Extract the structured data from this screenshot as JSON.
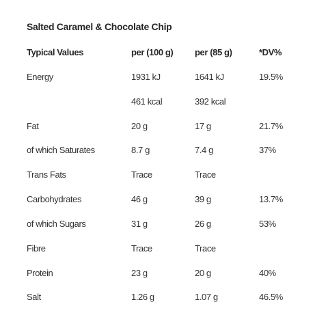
{
  "title": "Salted Caramel & Chocolate Chip",
  "headers": [
    "Typical Values",
    "per (100 g)",
    "per (85 g)",
    "*DV%"
  ],
  "rows": [
    [
      "Energy",
      "1931 kJ",
      "1641 kJ",
      "19.5%"
    ],
    [
      "",
      "461 kcal",
      "392 kcal",
      ""
    ],
    [
      "Fat",
      "20 g",
      "17 g",
      "21.7%"
    ],
    [
      "of which Saturates",
      "8.7 g",
      "7.4 g",
      "37%"
    ],
    [
      "Trans Fats",
      "Trace",
      "Trace",
      ""
    ],
    [
      "Carbohydrates",
      "46 g",
      "39 g",
      "13.7%"
    ],
    [
      "of which Sugars",
      "31 g",
      "26 g",
      "53%"
    ],
    [
      "Fibre",
      "Trace",
      "Trace",
      ""
    ],
    [
      "Protein",
      "23 g",
      "20 g",
      "40%"
    ],
    [
      "Salt",
      "1.26 g",
      "1.07 g",
      "46.5%"
    ]
  ]
}
